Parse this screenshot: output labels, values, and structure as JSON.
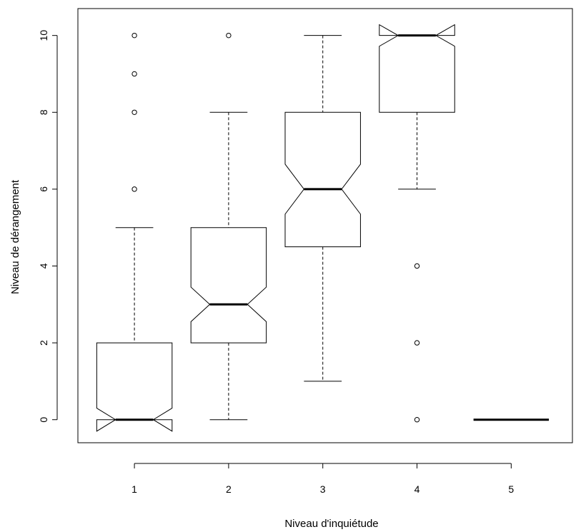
{
  "chart_data": {
    "type": "boxplot",
    "title": "",
    "xlabel": "Niveau d'inquiétude",
    "ylabel": "Niveau de dérangement",
    "categories": [
      "1",
      "2",
      "3",
      "4",
      "5"
    ],
    "ylim": [
      -0.6,
      10.7
    ],
    "yticks": [
      0,
      2,
      4,
      6,
      8,
      10
    ],
    "notched": true,
    "boxes": [
      {
        "category": "1",
        "whisker_low": 0,
        "q1": 0,
        "median": 0,
        "q3": 2,
        "whisker_high": 5,
        "notch_low": -0.3,
        "notch_high": 0.3,
        "outliers": [
          6,
          8,
          9,
          10
        ]
      },
      {
        "category": "2",
        "whisker_low": 0,
        "q1": 2,
        "median": 3,
        "q3": 5,
        "whisker_high": 8,
        "notch_low": 2.55,
        "notch_high": 3.45,
        "outliers": [
          10
        ]
      },
      {
        "category": "3",
        "whisker_low": 1,
        "q1": 4.5,
        "median": 6,
        "q3": 8,
        "whisker_high": 10,
        "notch_low": 5.35,
        "notch_high": 6.65,
        "outliers": []
      },
      {
        "category": "4",
        "whisker_low": 6,
        "q1": 8,
        "median": 10,
        "q3": 10,
        "whisker_high": 10,
        "notch_low": 9.72,
        "notch_high": 10.28,
        "outliers": [
          0,
          2,
          4
        ]
      },
      {
        "category": "5",
        "whisker_low": 0,
        "q1": 0,
        "median": 0,
        "q3": 0,
        "whisker_high": 0,
        "notch_low": 0,
        "notch_high": 0,
        "outliers": []
      }
    ]
  }
}
